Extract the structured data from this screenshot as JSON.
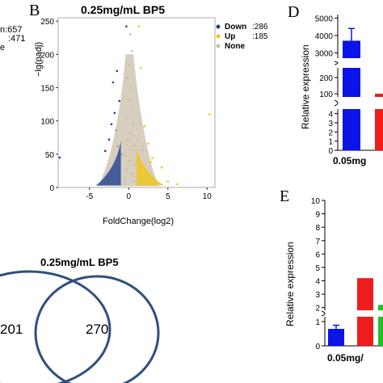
{
  "left_fragment": {
    "down_count_text": "n:657",
    "up_count_text": ":471",
    "none_text": "e"
  },
  "panel_b": {
    "letter": "B",
    "chart_data": {
      "type": "scatter",
      "title": "0.25mg/mL BP5",
      "xlabel": "FoldChange(log2)",
      "ylabel": "−lg(padj)",
      "xlim": [
        -9,
        11
      ],
      "ylim": [
        0,
        255
      ],
      "xticks": [
        "-5",
        "0",
        "5",
        "10"
      ],
      "yticks": [
        "0",
        "50",
        "100",
        "150",
        "200",
        "250"
      ],
      "legend_position": "top-right",
      "series": [
        {
          "name": "Down",
          "count_text": ":286",
          "color": "#1f3f93",
          "points": [
            [
              -0.3,
              242
            ],
            [
              -1.5,
              175
            ],
            [
              -2.0,
              158
            ],
            [
              -1.8,
              112
            ],
            [
              -2.2,
              95
            ],
            [
              -8.8,
              45
            ],
            [
              -1.2,
              130
            ],
            [
              -1.6,
              86
            ],
            [
              -2.5,
              72
            ],
            [
              -3.0,
              55
            ],
            [
              -1.4,
              62
            ],
            [
              -0.9,
              50
            ]
          ]
        },
        {
          "name": "Up",
          "count_text": ":185",
          "color": "#f0c419",
          "points": [
            [
              1.3,
              242
            ],
            [
              10.3,
              110
            ],
            [
              1.5,
              180
            ],
            [
              2.0,
              92
            ],
            [
              2.5,
              66
            ],
            [
              3.0,
              44
            ],
            [
              1.8,
              56
            ],
            [
              4.2,
              30
            ],
            [
              5.0,
              9
            ],
            [
              6.2,
              5
            ],
            [
              1.1,
              72
            ],
            [
              2.8,
              38
            ]
          ]
        },
        {
          "name": "None",
          "color": "#c8bfa8",
          "points": [
            [
              0.2,
              230
            ],
            [
              0.4,
              205
            ],
            [
              0.1,
              185
            ],
            [
              -0.2,
              165
            ],
            [
              0.3,
              150
            ],
            [
              0.0,
              132
            ],
            [
              0.5,
              118
            ],
            [
              -0.3,
              104
            ],
            [
              0.6,
              96
            ],
            [
              0.2,
              82
            ],
            [
              -0.1,
              72
            ],
            [
              0.7,
              64
            ],
            [
              0.3,
              56
            ],
            [
              -0.4,
              48
            ],
            [
              0.1,
              40
            ],
            [
              0.8,
              34
            ],
            [
              -0.2,
              28
            ],
            [
              0.4,
              20
            ],
            [
              -0.5,
              14
            ],
            [
              0.9,
              10
            ]
          ]
        }
      ]
    }
  },
  "panel_d": {
    "letter": "D",
    "chart_data": {
      "type": "bar",
      "ylabel": "Relative expression",
      "category_label": "0.05mg",
      "yticks": [
        "0",
        "1",
        "2",
        "3",
        "4",
        "100",
        "200",
        "3000",
        "4000",
        "5000"
      ],
      "bars": [
        {
          "value": 3700,
          "error": 700,
          "color": "#0a14e6"
        },
        {
          "value": 100,
          "color": "#ee1c1c"
        }
      ]
    }
  },
  "panel_e": {
    "letter": "E",
    "chart_data": {
      "type": "bar",
      "ylabel": "Relative expression",
      "category_label": "0.05mg/",
      "yticks": [
        "0",
        "1",
        "2",
        "3",
        "4",
        "5",
        "6",
        "7",
        "8",
        "9",
        "10"
      ],
      "bars": [
        {
          "value": 0.7,
          "error": 0.15,
          "color": "#0a14e6"
        },
        {
          "value": 4.2,
          "color": "#ee1c1c"
        },
        {
          "value": 2.2,
          "color": "#22c022"
        }
      ]
    }
  },
  "venn": {
    "title": "0.25mg/mL BP5",
    "left_value": "201",
    "right_value": "270",
    "outline_color": "#2f4f7f"
  }
}
